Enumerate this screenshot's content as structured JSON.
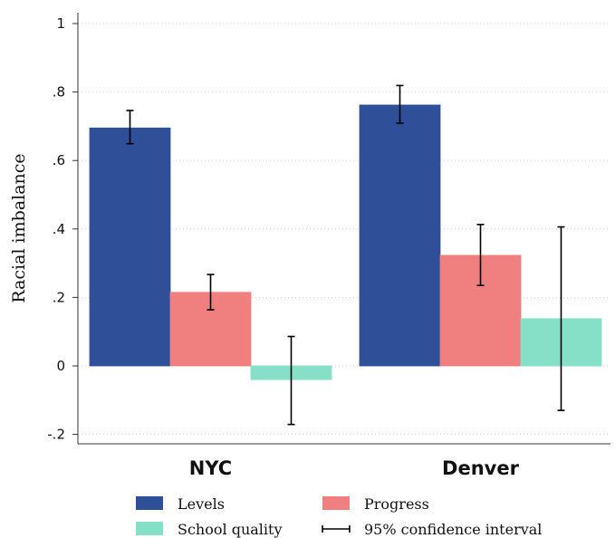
{
  "chart_data": {
    "type": "bar",
    "title": "",
    "xlabel": "",
    "ylabel": "Racial imbalance",
    "ylim": [
      -0.22,
      1.04
    ],
    "yticks": [
      -0.2,
      0,
      0.2,
      0.4,
      0.6,
      0.8,
      1
    ],
    "ytick_labels": [
      "-.2",
      "0",
      ".2",
      ".4",
      ".6",
      ".8",
      "1"
    ],
    "grid": true,
    "categories": [
      "NYC",
      "Denver"
    ],
    "series": [
      {
        "name": "Levels",
        "color": "#2f4f99",
        "values": [
          0.695,
          0.762
        ],
        "ci_low": [
          0.649,
          0.709
        ],
        "ci_high": [
          0.746,
          0.819
        ]
      },
      {
        "name": "Progress",
        "color": "#f08080",
        "values": [
          0.215,
          0.323
        ],
        "ci_low": [
          0.164,
          0.235
        ],
        "ci_high": [
          0.267,
          0.413
        ]
      },
      {
        "name": "School quality",
        "color": "#86e0c8",
        "values": [
          -0.04,
          0.138
        ],
        "ci_low": [
          -0.171,
          -0.13
        ],
        "ci_high": [
          0.086,
          0.406
        ]
      }
    ],
    "ci_legend_label": "95% confidence interval",
    "legend_position": "bottom"
  }
}
